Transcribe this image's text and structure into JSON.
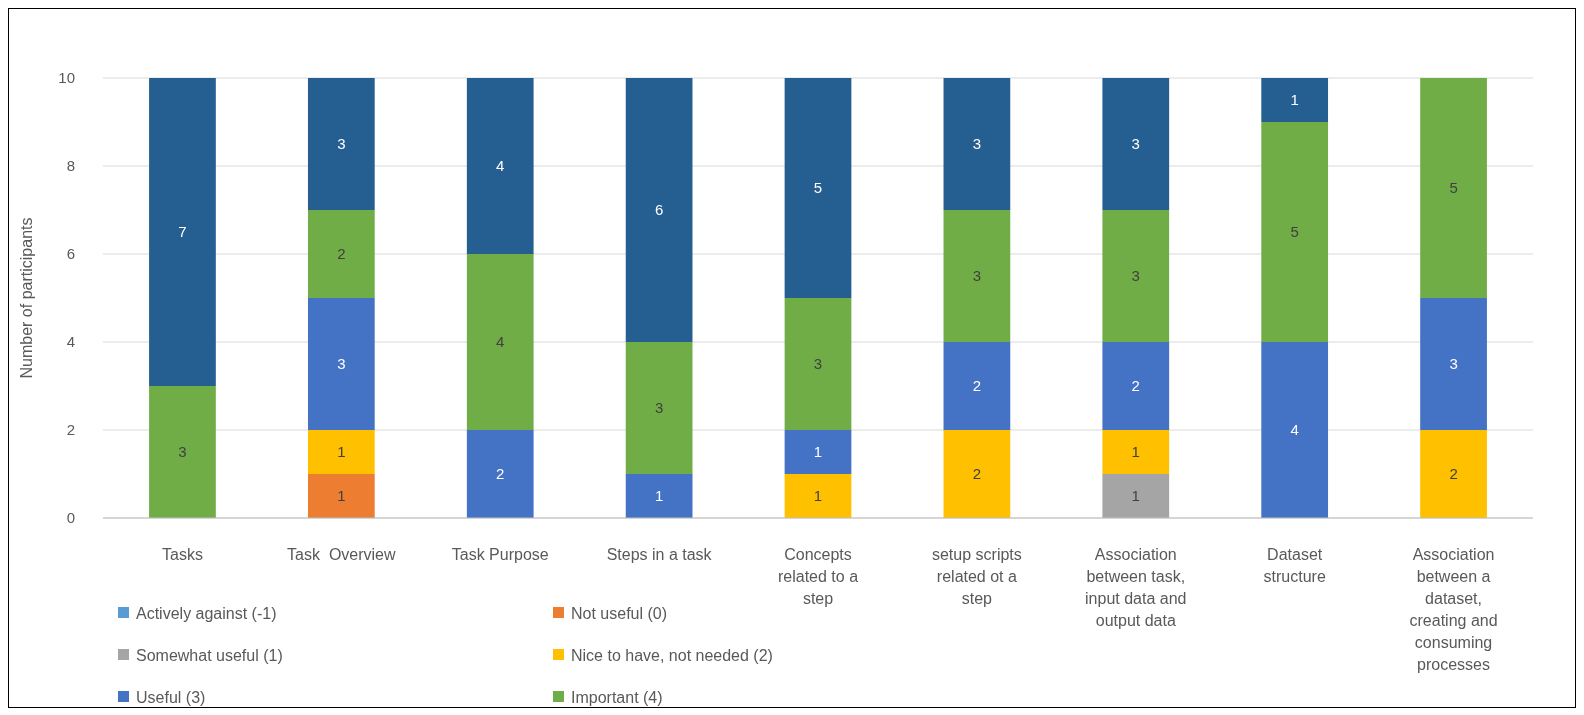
{
  "chart_data": {
    "type": "bar",
    "stacked": true,
    "ylabel": "Number of participants",
    "categories": [
      "Tasks",
      "Task  Overview",
      "Task Purpose",
      "Steps in a task",
      "Concepts related to a step",
      "setup scripts related ot a step",
      "Association between task, input data and output data",
      "Dataset structure",
      "Association between a dataset, creating and consuming processes"
    ],
    "ylim": [
      0,
      10
    ],
    "yticks": [
      0,
      2,
      4,
      6,
      8,
      10
    ],
    "grid": "y",
    "legend": "bottom left",
    "data_labels": true,
    "series": [
      {
        "name": "Actively against (-1)",
        "color": "#5b9bd5",
        "values": [
          null,
          null,
          null,
          null,
          null,
          null,
          null,
          null,
          null
        ]
      },
      {
        "name": "Not useful (0)",
        "color": "#ed7d31",
        "values": [
          null,
          1,
          null,
          null,
          null,
          null,
          null,
          null,
          null
        ]
      },
      {
        "name": "Somewhat useful (1)",
        "color": "#a5a5a5",
        "values": [
          null,
          null,
          null,
          null,
          null,
          null,
          1,
          null,
          null
        ]
      },
      {
        "name": "Nice to have, not needed (2)",
        "color": "#ffc000",
        "values": [
          null,
          1,
          null,
          null,
          1,
          2,
          1,
          null,
          2
        ]
      },
      {
        "name": "Useful (3)",
        "color": "#4472c4",
        "values": [
          null,
          3,
          2,
          1,
          1,
          2,
          2,
          4,
          3
        ]
      },
      {
        "name": "Important (4)",
        "color": "#70ad47",
        "values": [
          3,
          2,
          4,
          3,
          3,
          3,
          3,
          5,
          5
        ]
      },
      {
        "color": "#255e91",
        "values": [
          7,
          3,
          4,
          6,
          5,
          3,
          3,
          1,
          null
        ]
      }
    ]
  }
}
